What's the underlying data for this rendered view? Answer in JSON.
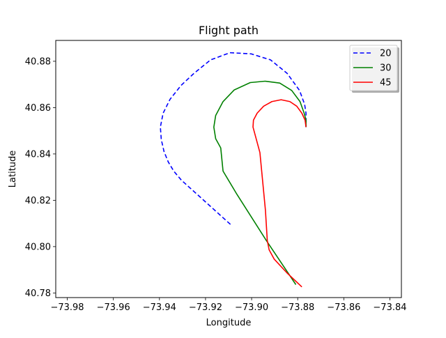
{
  "chart_data": {
    "type": "line",
    "title": "Flight path",
    "xlabel": "Longitude",
    "ylabel": "Latitude",
    "xlim": [
      -73.985,
      -73.835
    ],
    "ylim": [
      40.778,
      40.889
    ],
    "xticks": [
      -73.98,
      -73.96,
      -73.94,
      -73.92,
      -73.9,
      -73.88,
      -73.86,
      -73.84
    ],
    "xtick_labels": [
      "−73.98",
      "−73.96",
      "−73.94",
      "−73.92",
      "−73.90",
      "−73.88",
      "−73.86",
      "−73.84"
    ],
    "yticks": [
      40.78,
      40.8,
      40.82,
      40.84,
      40.86,
      40.88
    ],
    "ytick_labels": [
      "40.78",
      "40.80",
      "40.82",
      "40.84",
      "40.86",
      "40.88"
    ],
    "grid": false,
    "legend_position": "top-right",
    "series": [
      {
        "name": "20",
        "color": "#0000ff",
        "dash": "dashed",
        "points": [
          [
            -73.9092,
            40.8096
          ],
          [
            -73.917,
            40.8166
          ],
          [
            -73.9248,
            40.8236
          ],
          [
            -73.9304,
            40.8286
          ],
          [
            -73.9338,
            40.8326
          ],
          [
            -73.9362,
            40.8366
          ],
          [
            -73.938,
            40.841
          ],
          [
            -73.9392,
            40.8462
          ],
          [
            -73.9396,
            40.8516
          ],
          [
            -73.9384,
            40.8576
          ],
          [
            -73.9354,
            40.8636
          ],
          [
            -73.9306,
            40.8696
          ],
          [
            -73.925,
            40.8748
          ],
          [
            -73.9178,
            40.8806
          ],
          [
            -73.9094,
            40.8837
          ],
          [
            -73.9002,
            40.8832
          ],
          [
            -73.8918,
            40.8806
          ],
          [
            -73.8846,
            40.8748
          ],
          [
            -73.8792,
            40.8674
          ],
          [
            -73.877,
            40.8614
          ],
          [
            -73.8764,
            40.8576
          ],
          [
            -73.8764,
            40.8548
          ],
          [
            -73.8764,
            40.8516
          ]
        ]
      },
      {
        "name": "30",
        "color": "#008000",
        "dash": "solid",
        "points": [
          [
            -73.8808,
            40.7836
          ],
          [
            -73.8936,
            40.8026
          ],
          [
            -73.9064,
            40.8226
          ],
          [
            -73.9124,
            40.8326
          ],
          [
            -73.9134,
            40.8426
          ],
          [
            -73.9156,
            40.8466
          ],
          [
            -73.9164,
            40.8516
          ],
          [
            -73.9156,
            40.8566
          ],
          [
            -73.9124,
            40.8626
          ],
          [
            -73.9076,
            40.8676
          ],
          [
            -73.9006,
            40.8708
          ],
          [
            -73.8942,
            40.8714
          ],
          [
            -73.8878,
            40.8706
          ],
          [
            -73.8826,
            40.8674
          ],
          [
            -73.879,
            40.8626
          ],
          [
            -73.8772,
            40.8576
          ],
          [
            -73.8764,
            40.8546
          ],
          [
            -73.8764,
            40.8516
          ]
        ]
      },
      {
        "name": "45",
        "color": "#ff0000",
        "dash": "solid",
        "points": [
          [
            -73.8782,
            40.7826
          ],
          [
            -73.8846,
            40.7886
          ],
          [
            -73.8902,
            40.7946
          ],
          [
            -73.8924,
            40.7986
          ],
          [
            -73.8932,
            40.8026
          ],
          [
            -73.894,
            40.8156
          ],
          [
            -73.8964,
            40.8406
          ],
          [
            -73.8994,
            40.8516
          ],
          [
            -73.8992,
            40.8546
          ],
          [
            -73.8976,
            40.8576
          ],
          [
            -73.8948,
            40.8606
          ],
          [
            -73.8912,
            40.8626
          ],
          [
            -73.8872,
            40.8634
          ],
          [
            -73.8834,
            40.8626
          ],
          [
            -73.8804,
            40.8606
          ],
          [
            -73.8782,
            40.8576
          ],
          [
            -73.8768,
            40.8546
          ],
          [
            -73.8764,
            40.8516
          ]
        ]
      }
    ]
  }
}
